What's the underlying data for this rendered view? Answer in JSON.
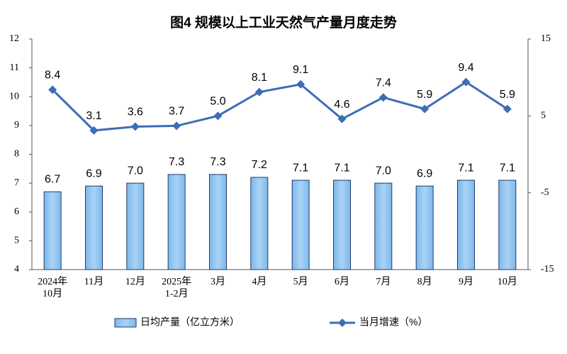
{
  "chart_data": {
    "type": "bar",
    "title": "图4  规模以上工业天然气产量月度走势",
    "categories": [
      [
        "2024年",
        "10月"
      ],
      "11月",
      "12月",
      [
        "2025年",
        "1-2月"
      ],
      "3月",
      "4月",
      "5月",
      "6月",
      "7月",
      "8月",
      "9月",
      "10月"
    ],
    "series": [
      {
        "name": "日均产量（亿立方米）",
        "type": "bar",
        "color": "#a9d3f5",
        "edge": "#1f3a6e",
        "values": [
          6.7,
          6.9,
          7.0,
          7.3,
          7.3,
          7.2,
          7.1,
          7.1,
          7.0,
          6.9,
          7.1,
          7.1
        ],
        "value_labels": [
          "6.7",
          "6.9",
          "7.0",
          "7.3",
          "7.3",
          "7.2",
          "7.1",
          "7.1",
          "7.0",
          "6.9",
          "7.1",
          "7.1"
        ]
      },
      {
        "name": "当月增速（%）",
        "type": "line",
        "axis": "y2",
        "color": "#3d6db5",
        "values": [
          8.4,
          3.1,
          3.6,
          3.7,
          5.0,
          8.1,
          9.1,
          4.6,
          7.4,
          5.9,
          9.4,
          5.9
        ],
        "value_labels": [
          "8.4",
          "3.1",
          "3.6",
          "3.7",
          "5.0",
          "8.1",
          "9.1",
          "4.6",
          "7.4",
          "5.9",
          "9.4",
          "5.9"
        ]
      }
    ],
    "ylim": [
      4,
      12
    ],
    "yticks": [
      4,
      5,
      6,
      7,
      8,
      9,
      10,
      11,
      12
    ],
    "y2lim": [
      -15,
      15
    ],
    "y2ticks": [
      -15,
      -5,
      5,
      15
    ],
    "grid": false
  }
}
